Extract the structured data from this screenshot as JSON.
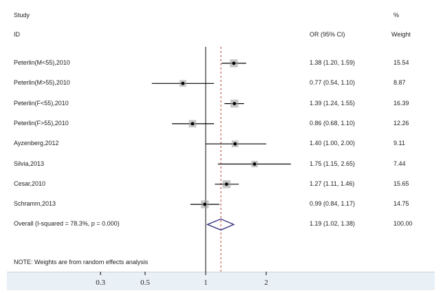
{
  "header": {
    "study_label": "Study",
    "id_label": "ID",
    "or_label": "OR (95% CI)",
    "pct_label": "%",
    "weight_label": "Weight"
  },
  "note": "NOTE: Weights are from random effects analysis",
  "colors": {
    "line": "#000000",
    "diamond": "#2e2a7a",
    "dashed": "#c0392b",
    "axis_band": "#e9f0f6"
  },
  "chart_data": {
    "type": "forest",
    "x_scale": "log",
    "xlim": [
      0.25,
      3.0
    ],
    "x_ticks": [
      {
        "value": 0.3,
        "label": "0.3"
      },
      {
        "value": 0.5,
        "label": "0.5"
      },
      {
        "value": 1,
        "label": "1"
      },
      {
        "value": 2,
        "label": "2"
      }
    ],
    "null_line": 1,
    "overall_line": 1.19,
    "studies": [
      {
        "id": "Peterlin(M<55),2010",
        "or": 1.38,
        "lo": 1.2,
        "hi": 1.59,
        "ci_text": "1.38 (1.20, 1.59)",
        "weight": 15.54,
        "weight_text": "15.54"
      },
      {
        "id": "Peterlin(M>55),2010",
        "or": 0.77,
        "lo": 0.54,
        "hi": 1.1,
        "ci_text": "0.77 (0.54, 1.10)",
        "weight": 8.87,
        "weight_text": "8.87"
      },
      {
        "id": "Peterlin(F<55),2010",
        "or": 1.39,
        "lo": 1.24,
        "hi": 1.55,
        "ci_text": "1.39 (1.24, 1.55)",
        "weight": 16.39,
        "weight_text": "16.39"
      },
      {
        "id": "Peterlin(F>55),2010",
        "or": 0.86,
        "lo": 0.68,
        "hi": 1.1,
        "ci_text": "0.86 (0.68, 1.10)",
        "weight": 12.26,
        "weight_text": "12.26"
      },
      {
        "id": "Ayzenberg,2012",
        "or": 1.4,
        "lo": 1.0,
        "hi": 2.0,
        "ci_text": "1.40 (1.00, 2.00)",
        "weight": 9.11,
        "weight_text": "9.11"
      },
      {
        "id": "Silvia,2013",
        "or": 1.75,
        "lo": 1.15,
        "hi": 2.65,
        "ci_text": "1.75 (1.15, 2.65)",
        "weight": 7.44,
        "weight_text": "7.44"
      },
      {
        "id": "Cesar,2010",
        "or": 1.27,
        "lo": 1.11,
        "hi": 1.46,
        "ci_text": "1.27 (1.11, 1.46)",
        "weight": 15.65,
        "weight_text": "15.65"
      },
      {
        "id": "Schramm,2013",
        "or": 0.99,
        "lo": 0.84,
        "hi": 1.17,
        "ci_text": "0.99 (0.84, 1.17)",
        "weight": 14.75,
        "weight_text": "14.75"
      }
    ],
    "overall": {
      "id": "Overall  (I-squared = 78.3%, p = 0.000)",
      "or": 1.19,
      "lo": 1.02,
      "hi": 1.38,
      "ci_text": "1.19 (1.02, 1.38)",
      "weight": 100.0,
      "weight_text": "100.00"
    }
  }
}
